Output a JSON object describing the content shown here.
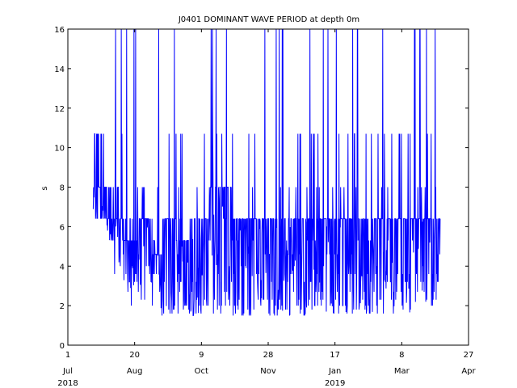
{
  "chart_data": {
    "type": "line",
    "title": "J0401 DOMINANT WAVE PERIOD at depth 0m",
    "xlabel": "",
    "ylabel": "s",
    "ylim": [
      0,
      16
    ],
    "xlim": [
      "2018-07-01",
      "2019-04-27"
    ],
    "grid": false,
    "line_color": "#0000ff",
    "y_ticks": [
      "0",
      "2",
      "4",
      "6",
      "8",
      "10",
      "12",
      "14",
      "16"
    ],
    "x_ticks": [
      {
        "day": "1",
        "month": "Jul",
        "date": "2018-07-01"
      },
      {
        "day": "20",
        "month": "Aug",
        "date": "2018-08-20"
      },
      {
        "day": "9",
        "month": "Oct",
        "date": "2018-10-09"
      },
      {
        "day": "28",
        "month": "Nov",
        "date": "2018-11-28"
      },
      {
        "day": "17",
        "month": "Jan",
        "date": "2019-01-17"
      },
      {
        "day": "8",
        "month": "Mar",
        "date": "2019-03-08"
      },
      {
        "day": "27",
        "month": "Apr",
        "date": "2019-04-27"
      }
    ],
    "year_labels": [
      {
        "text": "2018",
        "date": "2018-07-01"
      },
      {
        "text": "2019",
        "date": "2019-01-17"
      }
    ],
    "series": [
      {
        "color": "#0000ff",
        "segments": [
          {
            "start": "2018-07-20",
            "end": "2018-07-30",
            "low": 6.4,
            "high": 10.7,
            "base": 8.0
          },
          {
            "start": "2018-07-30",
            "end": "2018-08-05",
            "low": 5.3,
            "high": 8.0,
            "base": 6.4
          },
          {
            "start": "2018-08-05",
            "end": "2018-08-12",
            "low": 3.6,
            "high": 16.0,
            "base": 6.4
          },
          {
            "start": "2018-08-12",
            "end": "2018-08-22",
            "low": 2.0,
            "high": 16.0,
            "base": 5.3
          },
          {
            "start": "2018-08-22",
            "end": "2018-09-01",
            "low": 1.7,
            "high": 16.0,
            "base": 6.4
          },
          {
            "start": "2018-09-01",
            "end": "2018-09-10",
            "low": 1.5,
            "high": 16.0,
            "base": 4.6
          },
          {
            "start": "2018-09-10",
            "end": "2018-09-20",
            "low": 1.6,
            "high": 16.0,
            "base": 6.4
          },
          {
            "start": "2018-09-20",
            "end": "2018-10-01",
            "low": 1.6,
            "high": 10.7,
            "base": 5.3
          },
          {
            "start": "2018-10-01",
            "end": "2018-10-15",
            "low": 1.5,
            "high": 10.7,
            "base": 6.4
          },
          {
            "start": "2018-10-15",
            "end": "2018-11-01",
            "low": 1.5,
            "high": 16.0,
            "base": 8.0
          },
          {
            "start": "2018-11-01",
            "end": "2018-11-20",
            "low": 1.3,
            "high": 16.0,
            "base": 6.4
          },
          {
            "start": "2018-11-20",
            "end": "2018-12-10",
            "low": 1.4,
            "high": 16.0,
            "base": 6.4
          },
          {
            "start": "2018-12-10",
            "end": "2019-01-01",
            "low": 1.5,
            "high": 16.0,
            "base": 6.4
          },
          {
            "start": "2019-01-01",
            "end": "2019-01-20",
            "low": 1.6,
            "high": 16.0,
            "base": 6.4
          },
          {
            "start": "2019-01-20",
            "end": "2019-02-10",
            "low": 1.6,
            "high": 16.0,
            "base": 6.4
          },
          {
            "start": "2019-02-10",
            "end": "2019-03-01",
            "low": 1.6,
            "high": 16.0,
            "base": 6.4
          },
          {
            "start": "2019-03-01",
            "end": "2019-03-20",
            "low": 1.6,
            "high": 16.0,
            "base": 6.4
          },
          {
            "start": "2019-03-20",
            "end": "2019-04-06",
            "low": 2.0,
            "high": 16.0,
            "base": 6.4
          }
        ]
      }
    ]
  }
}
